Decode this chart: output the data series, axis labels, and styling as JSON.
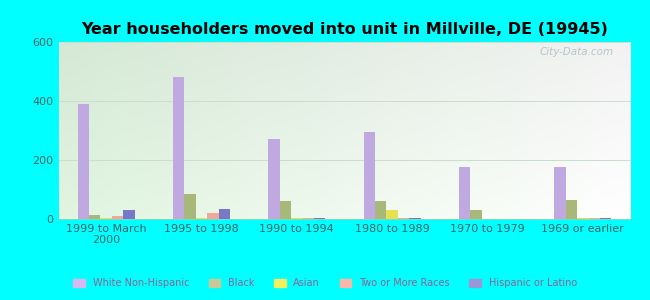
{
  "title": "Year householders moved into unit in Millville, DE (19945)",
  "categories": [
    "1999 to March\n2000",
    "1995 to 1998",
    "1990 to 1994",
    "1980 to 1989",
    "1970 to 1979",
    "1969 or earlier"
  ],
  "series": {
    "White Non-Hispanic": [
      390,
      480,
      270,
      295,
      175,
      175
    ],
    "Black": [
      15,
      85,
      60,
      60,
      30,
      65
    ],
    "Asian": [
      5,
      5,
      5,
      30,
      0,
      5
    ],
    "Two or More Races": [
      10,
      20,
      5,
      5,
      0,
      5
    ],
    "Hispanic or Latino": [
      30,
      35,
      5,
      5,
      0,
      5
    ]
  },
  "colors": {
    "White Non-Hispanic": "#c0a8e0",
    "Black": "#a8b878",
    "Asian": "#e8e050",
    "Two or More Races": "#f0a898",
    "Hispanic or Latino": "#7878c8"
  },
  "legend_colors": {
    "White Non-Hispanic": "#d8b8f0",
    "Black": "#c8c898",
    "Asian": "#f0f060",
    "Two or More Races": "#f8b8a8",
    "Hispanic or Latino": "#9898d8"
  },
  "ylim": [
    0,
    600
  ],
  "yticks": [
    0,
    200,
    400,
    600
  ],
  "background_color": "#00ffff",
  "watermark": "City-Data.com",
  "bar_width": 0.12
}
